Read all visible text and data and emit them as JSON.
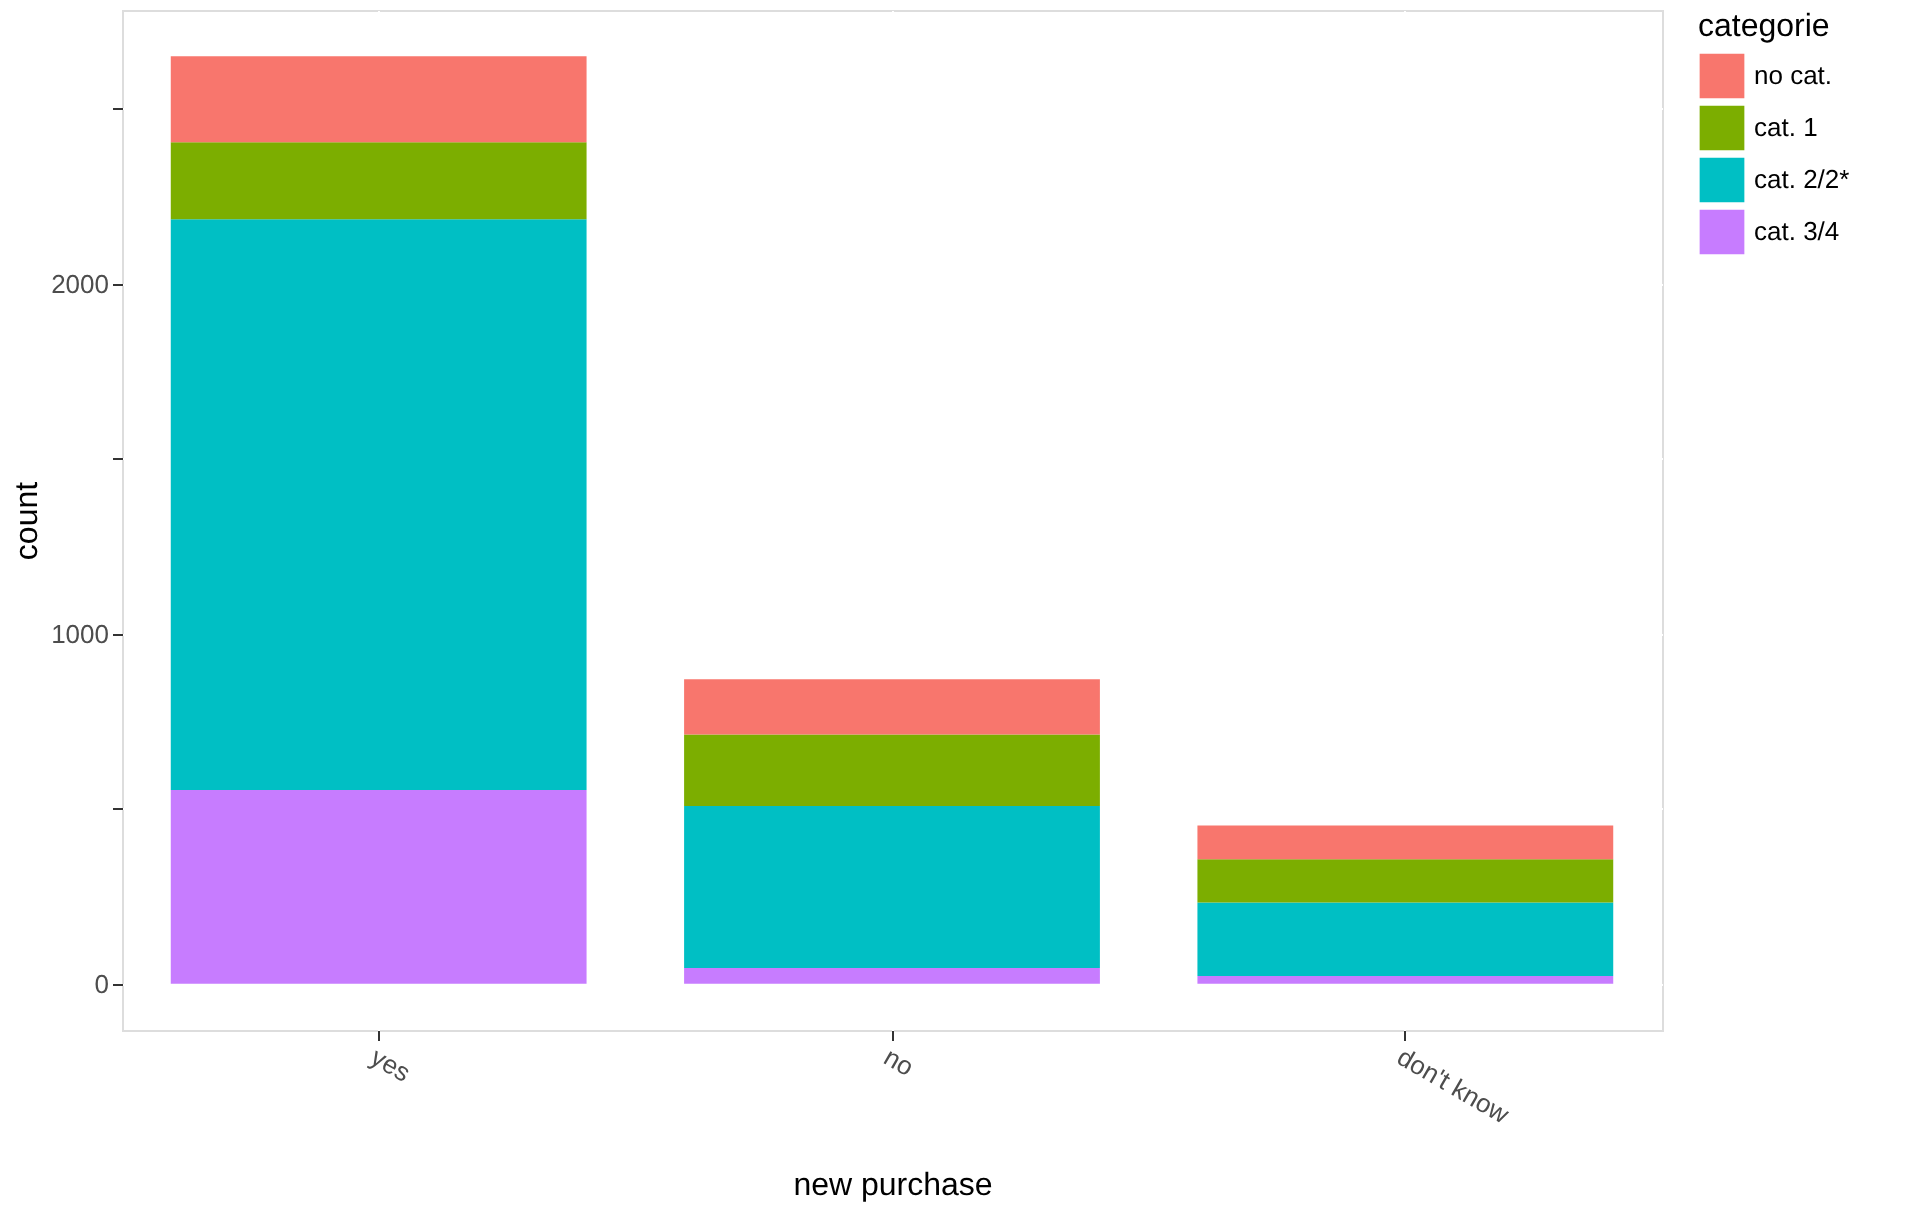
{
  "chart_data": {
    "type": "bar",
    "stacked": true,
    "xlabel": "new purchase",
    "ylabel": "count",
    "legend_title": "categorie",
    "legend": "right",
    "grid": true,
    "categories": [
      "yes",
      "no",
      "don't know"
    ],
    "series": [
      {
        "name": "cat. 3/4",
        "color": "#c77cff",
        "values": [
          554,
          45,
          22
        ]
      },
      {
        "name": "cat. 2/2*",
        "color": "#00bfc4",
        "values": [
          1630,
          463,
          210
        ]
      },
      {
        "name": "cat. 1",
        "color": "#7cae00",
        "values": [
          220,
          204,
          124
        ]
      },
      {
        "name": "no cat.",
        "color": "#f8766d",
        "values": [
          246,
          158,
          96
        ]
      }
    ],
    "ylim": [
      -132,
      2782
    ],
    "yticks": [
      0,
      {
        "value": 500,
        "label": null
      },
      1000,
      {
        "value": 1500,
        "label": null
      },
      2000,
      {
        "value": 2500,
        "label": null
      }
    ]
  }
}
